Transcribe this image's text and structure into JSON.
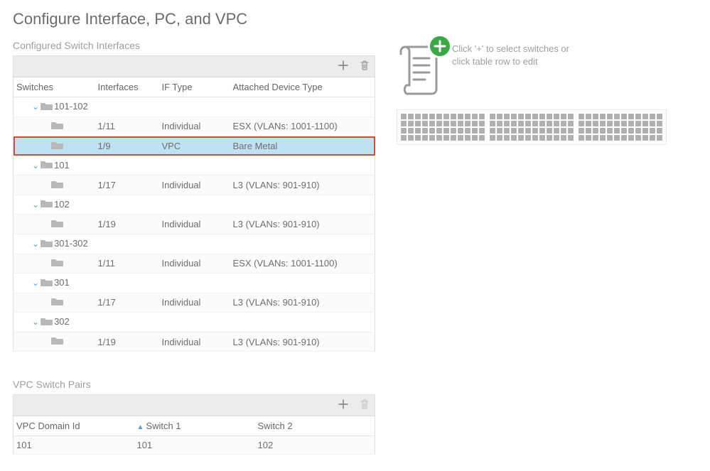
{
  "page_title": "Configure Interface, PC, and VPC",
  "section_interfaces_title": "Configured Switch Interfaces",
  "section_vpc_title": "VPC Switch Pairs",
  "hint_text_line1": "Click '+' to select switches or",
  "hint_text_line2": "click table row to edit",
  "colors": {
    "selected_row_bg": "#bfe2f2",
    "selected_row_border": "#d94a3d",
    "chevron": "#4aa3df",
    "plus_badge": "#39a845",
    "text_muted": "#9e9e9e",
    "text_body": "#6d6d6d",
    "port_dot": "#b0b0b0"
  },
  "interfaces_table": {
    "headers": {
      "switches": "Switches",
      "interfaces": "Interfaces",
      "if_type": "IF Type",
      "attached_device": "Attached Device Type"
    },
    "groups": [
      {
        "label": "101-102",
        "rows": [
          {
            "iface": "1/11",
            "type": "Individual",
            "device": "ESX (VLANs: 1001-1100)",
            "selected": false
          },
          {
            "iface": "1/9",
            "type": "VPC",
            "device": "Bare Metal",
            "selected": true
          }
        ]
      },
      {
        "label": "101",
        "rows": [
          {
            "iface": "1/17",
            "type": "Individual",
            "device": "L3 (VLANs: 901-910)",
            "selected": false
          }
        ]
      },
      {
        "label": "102",
        "rows": [
          {
            "iface": "1/19",
            "type": "Individual",
            "device": "L3 (VLANs: 901-910)",
            "selected": false
          }
        ]
      },
      {
        "label": "301-302",
        "rows": [
          {
            "iface": "1/11",
            "type": "Individual",
            "device": "ESX (VLANs: 1001-1100)",
            "selected": false
          }
        ]
      },
      {
        "label": "301",
        "rows": [
          {
            "iface": "1/17",
            "type": "Individual",
            "device": "L3 (VLANs: 901-910)",
            "selected": false
          }
        ]
      },
      {
        "label": "302",
        "rows": [
          {
            "iface": "1/19",
            "type": "Individual",
            "device": "L3 (VLANs: 901-910)",
            "selected": false
          }
        ]
      }
    ]
  },
  "vpc_table": {
    "headers": {
      "domain": "VPC Domain Id",
      "switch1": "Switch 1",
      "switch2": "Switch 2"
    },
    "sort_column": "switch1",
    "rows": [
      {
        "domain": "101",
        "switch1": "101",
        "switch2": "102"
      }
    ]
  },
  "switch_graphic": {
    "groups": 3,
    "cols_per_group": 12,
    "rows_per_group": 4
  }
}
